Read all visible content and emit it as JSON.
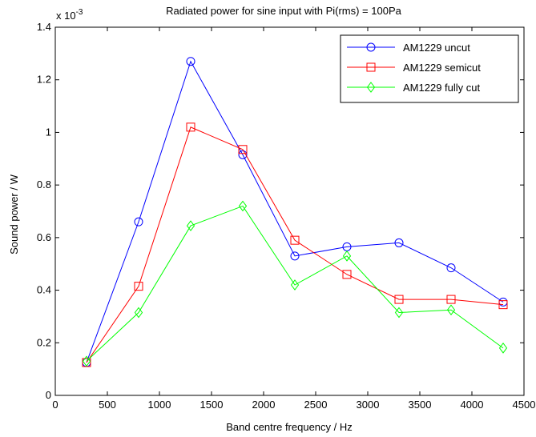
{
  "chart_data": {
    "type": "line",
    "title": "Radiated power for sine input with Pi(rms) = 100Pa",
    "xlabel": "Band centre frequency / Hz",
    "ylabel": "Sound power / W",
    "y_exponent_label": "x 10",
    "y_exponent_value": "-3",
    "xlim": [
      0,
      4500
    ],
    "ylim": [
      0,
      1.4
    ],
    "y_scale_factor": 0.001,
    "xticks": [
      0,
      500,
      1000,
      1500,
      2000,
      2500,
      3000,
      3500,
      4000,
      4500
    ],
    "yticks": [
      0,
      0.2,
      0.4,
      0.6,
      0.8,
      1,
      1.2,
      1.4
    ],
    "ytick_labels": [
      "0",
      "0.2",
      "0.4",
      "0.6",
      "0.8",
      "1",
      "1.2",
      "1.4"
    ],
    "grid": false,
    "legend_position": "top-right",
    "x": [
      300,
      800,
      1300,
      1800,
      2300,
      2800,
      3300,
      3800,
      4300
    ],
    "series": [
      {
        "name": "AM1229 uncut",
        "color": "#0000ff",
        "marker": "circle",
        "values": [
          0.125,
          0.66,
          1.27,
          0.915,
          0.53,
          0.565,
          0.58,
          0.485,
          0.355
        ]
      },
      {
        "name": "AM1229 semicut",
        "color": "#ff0000",
        "marker": "square",
        "values": [
          0.125,
          0.415,
          1.02,
          0.935,
          0.59,
          0.46,
          0.365,
          0.365,
          0.345
        ]
      },
      {
        "name": "AM1229 fully cut",
        "color": "#00ff00",
        "marker": "diamond",
        "values": [
          0.13,
          0.315,
          0.645,
          0.72,
          0.42,
          0.53,
          0.315,
          0.325,
          0.18
        ]
      }
    ]
  }
}
